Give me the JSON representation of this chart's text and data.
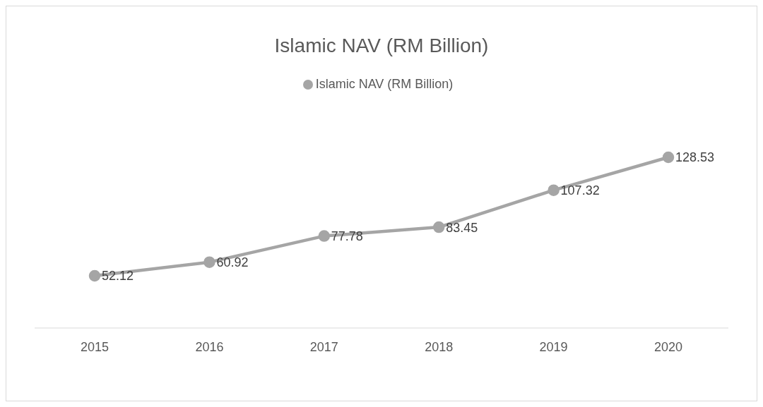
{
  "chart_data": {
    "type": "line",
    "title": "Islamic NAV (RM Billion)",
    "categories": [
      "2015",
      "2016",
      "2017",
      "2018",
      "2019",
      "2020"
    ],
    "series": [
      {
        "name": "Islamic NAV (RM Billion)",
        "color": "#a5a5a5",
        "values": [
          52.12,
          60.92,
          77.78,
          83.45,
          107.32,
          128.53
        ]
      }
    ],
    "tick_labels": "x",
    "data_labels": true,
    "legend": "top",
    "marker": "circle"
  }
}
